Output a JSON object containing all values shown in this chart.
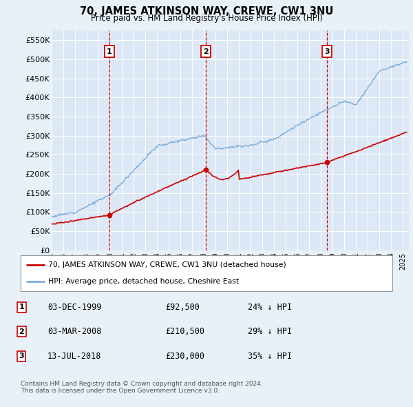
{
  "title": "70, JAMES ATKINSON WAY, CREWE, CW1 3NU",
  "subtitle": "Price paid vs. HM Land Registry's House Price Index (HPI)",
  "background_color": "#e8f0f8",
  "plot_bg_color": "#dce8f5",
  "ylim": [
    0,
    575000
  ],
  "yticks": [
    0,
    50000,
    100000,
    150000,
    200000,
    250000,
    300000,
    350000,
    400000,
    450000,
    500000,
    550000
  ],
  "ytick_labels": [
    "£0",
    "£50K",
    "£100K",
    "£150K",
    "£200K",
    "£250K",
    "£300K",
    "£350K",
    "£400K",
    "£450K",
    "£500K",
    "£550K"
  ],
  "sales": [
    {
      "date_num": 1999.92,
      "price": 92500,
      "label": "1"
    },
    {
      "date_num": 2008.17,
      "price": 210500,
      "label": "2"
    },
    {
      "date_num": 2018.53,
      "price": 230000,
      "label": "3"
    }
  ],
  "legend_entries": [
    "70, JAMES ATKINSON WAY, CREWE, CW1 3NU (detached house)",
    "HPI: Average price, detached house, Cheshire East"
  ],
  "table_rows": [
    [
      "1",
      "03-DEC-1999",
      "£92,500",
      "24% ↓ HPI"
    ],
    [
      "2",
      "03-MAR-2008",
      "£210,500",
      "29% ↓ HPI"
    ],
    [
      "3",
      "13-JUL-2018",
      "£230,000",
      "35% ↓ HPI"
    ]
  ],
  "footer": "Contains HM Land Registry data © Crown copyright and database right 2024.\nThis data is licensed under the Open Government Licence v3.0.",
  "red_line_color": "#cc0000",
  "blue_line_color": "#7aacdc",
  "vline_color": "#cc0000",
  "box_color": "#cc0000",
  "grid_color": "#ffffff"
}
